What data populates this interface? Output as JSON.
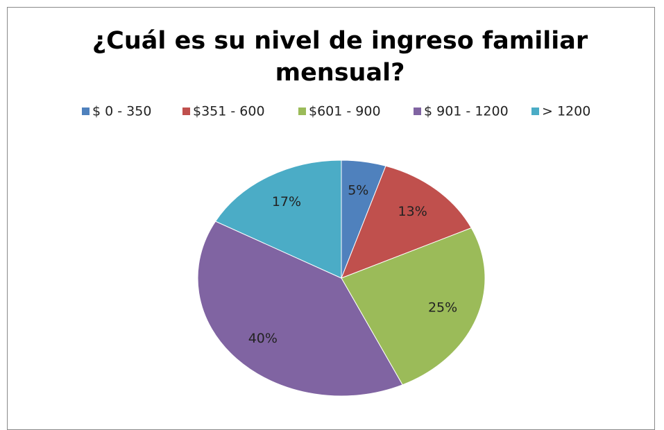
{
  "chart_data": {
    "type": "pie",
    "title": "¿Cuál es su nivel de ingreso familiar mensual?",
    "categories": [
      "$ 0 - 350",
      "$351 - 600",
      "$601 - 900",
      "$ 901 - 1200",
      "> 1200"
    ],
    "values": [
      5,
      13,
      25,
      40,
      17
    ],
    "value_labels": [
      "5%",
      "13%",
      "25%",
      "40%",
      "17%"
    ],
    "colors": [
      "#4f81bd",
      "#c0504d",
      "#9bbb59",
      "#8064a2",
      "#4bacc6"
    ],
    "legend": "top"
  }
}
